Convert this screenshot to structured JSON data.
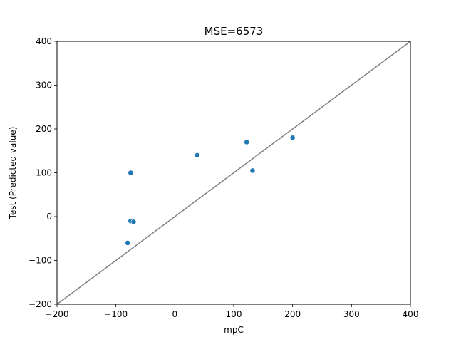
{
  "chart_data": {
    "type": "scatter",
    "title": "MSE=6573",
    "xlabel": "mpC",
    "ylabel": "Test (Predicted value)",
    "xlim": [
      -200,
      400
    ],
    "ylim": [
      -200,
      400
    ],
    "xticks": [
      -200,
      -100,
      0,
      100,
      200,
      300,
      400
    ],
    "yticks": [
      -200,
      -100,
      0,
      100,
      200,
      300,
      400
    ],
    "xtick_labels": [
      "−200",
      "−100",
      "0",
      "100",
      "200",
      "300",
      "400"
    ],
    "ytick_labels": [
      "−200",
      "−100",
      "0",
      "100",
      "200",
      "300",
      "400"
    ],
    "grid": false,
    "reference_line": {
      "x": [
        -200,
        400
      ],
      "y": [
        -200,
        400
      ],
      "color": "#808080"
    },
    "points": [
      {
        "x": -80,
        "y": -60
      },
      {
        "x": -75,
        "y": -10
      },
      {
        "x": -70,
        "y": -12
      },
      {
        "x": -75,
        "y": 100
      },
      {
        "x": 38,
        "y": 140
      },
      {
        "x": 122,
        "y": 170
      },
      {
        "x": 132,
        "y": 105
      },
      {
        "x": 200,
        "y": 180
      }
    ],
    "marker_color": "#1f77b4"
  }
}
